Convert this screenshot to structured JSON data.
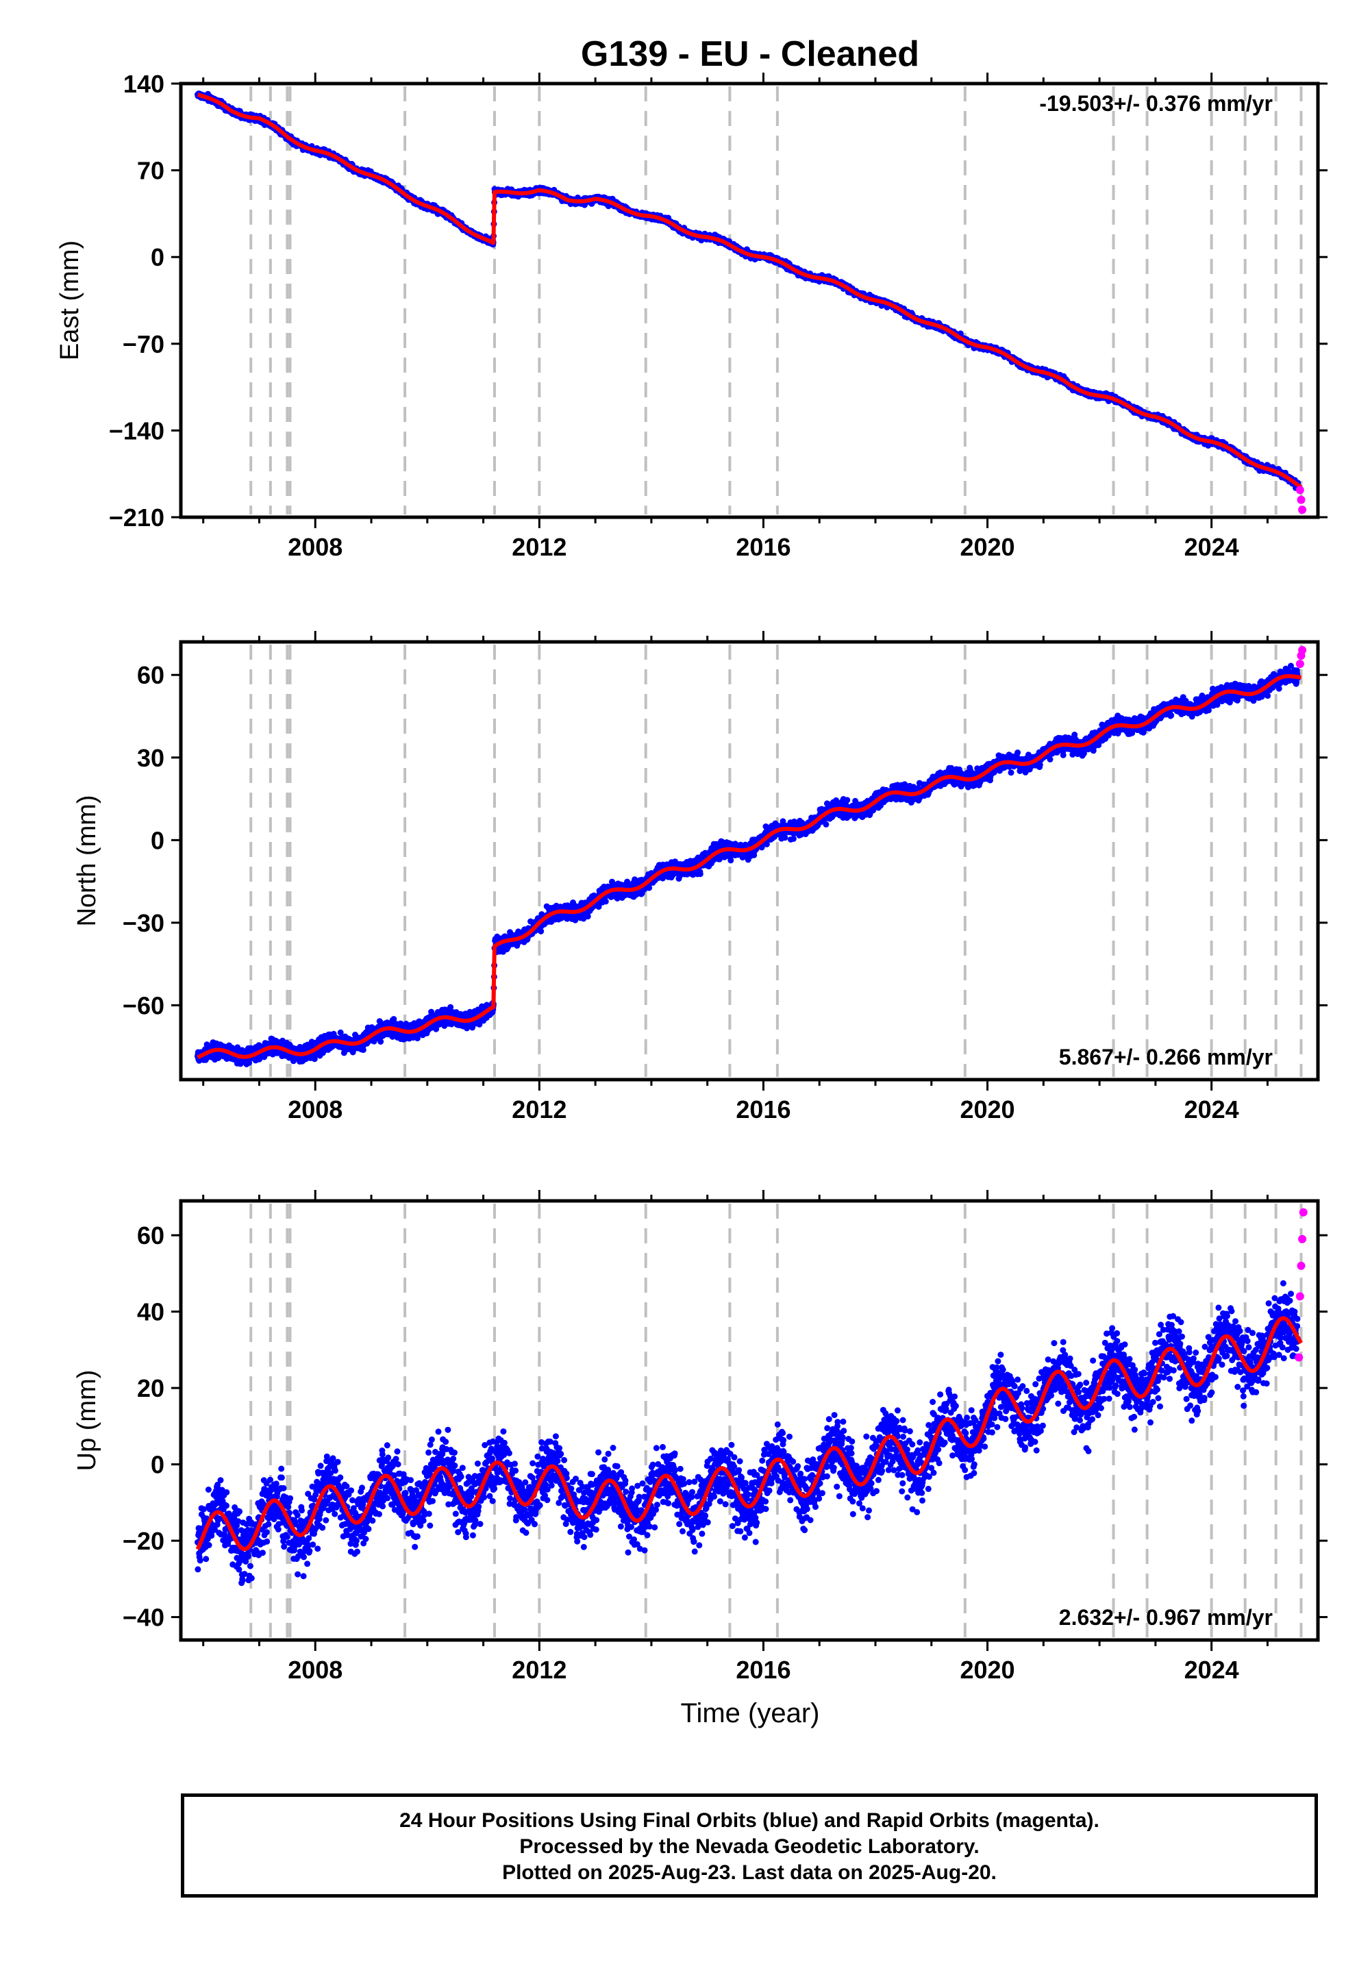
{
  "title": "G139  - EU - Cleaned",
  "xlabel": "Time (year)",
  "footer": {
    "line1": "24 Hour Positions Using Final Orbits (blue) and Rapid Orbits (magenta).",
    "line2": "Processed by the Nevada Geodetic Laboratory.",
    "line3": "Plotted on 2025-Aug-23. Last data on 2025-Aug-20."
  },
  "colors": {
    "final": "#0000ff",
    "rapid": "#ff00ff",
    "model": "#ff0000",
    "steps": "#c0c0c0"
  },
  "chart_data": [
    {
      "type": "scatter",
      "title": "G139  - EU - Cleaned",
      "ylabel": "East (mm)",
      "xlim": [
        2005.6,
        2025.9
      ],
      "ylim": [
        -210,
        140
      ],
      "xticks": [
        2008,
        2012,
        2016,
        2020,
        2024
      ],
      "yticks": [
        -210,
        -140,
        -70,
        0,
        70,
        140
      ],
      "ytick_labels": [
        "−210",
        "−140",
        "−70",
        "0",
        "70",
        "140"
      ],
      "rate_text": "-19.503+/- 0.376 mm/yr",
      "rate_position": "top-right",
      "step_epochs": [
        2006.85,
        2007.2,
        2007.5,
        2007.55,
        2009.6,
        2011.2,
        2012.0,
        2013.9,
        2015.4,
        2016.25,
        2019.6,
        2022.25,
        2022.85,
        2024.0,
        2024.6,
        2025.15,
        2025.6
      ],
      "trend": {
        "x": [
          2005.9,
          2006.5,
          2007.0,
          2007.5,
          2008.0,
          2008.5,
          2009.0,
          2009.5,
          2010.0,
          2010.5,
          2011.18,
          2011.2,
          2012.0,
          2012.5,
          2013.0,
          2013.5,
          2014.0,
          2014.5,
          2015.0,
          2015.5,
          2016.0,
          2016.5,
          2017.0,
          2017.5,
          2018.0,
          2018.5,
          2019.0,
          2019.5,
          2020.0,
          2020.5,
          2021.0,
          2021.5,
          2022.0,
          2022.5,
          2023.0,
          2023.5,
          2024.0,
          2024.5,
          2025.0,
          2025.6
        ],
        "y": [
          132,
          118,
          112,
          97,
          86,
          77,
          66,
          54,
          41,
          29,
          10,
          51,
          54,
          46,
          47,
          39,
          33,
          23,
          16,
          7,
          0,
          -9,
          -17,
          -25,
          -35,
          -44,
          -54,
          -65,
          -73,
          -84,
          -93,
          -104,
          -112,
          -120,
          -129,
          -141,
          -149,
          -160,
          -171,
          -185
        ]
      },
      "rapid": {
        "x": [
          2025.58,
          2025.6,
          2025.62
        ],
        "y": [
          -188,
          -196,
          -204
        ]
      },
      "scatter_sigma": 2.2,
      "annual_amplitude": 1.5
    },
    {
      "type": "scatter",
      "ylabel": "North (mm)",
      "xlim": [
        2005.6,
        2025.9
      ],
      "ylim": [
        -87,
        72
      ],
      "xticks": [
        2008,
        2012,
        2016,
        2020,
        2024
      ],
      "yticks": [
        -60,
        -30,
        0,
        30,
        60
      ],
      "ytick_labels": [
        "−60",
        "−30",
        "0",
        "30",
        "60"
      ],
      "rate_text": "5.867+/- 0.266 mm/yr",
      "rate_position": "bottom-right",
      "step_epochs": [
        2006.85,
        2007.2,
        2007.5,
        2007.55,
        2009.6,
        2011.2,
        2012.0,
        2013.9,
        2015.4,
        2016.25,
        2019.6,
        2022.25,
        2022.85,
        2024.0,
        2024.6,
        2025.15,
        2025.6
      ],
      "trend": {
        "x": [
          2005.9,
          2007.0,
          2008.0,
          2009.0,
          2010.0,
          2011.0,
          2011.18,
          2011.2,
          2012.0,
          2013.0,
          2014.0,
          2015.0,
          2016.0,
          2017.0,
          2018.0,
          2019.0,
          2020.0,
          2021.0,
          2022.0,
          2023.0,
          2024.0,
          2025.0,
          2025.6
        ],
        "y": [
          -78,
          -77,
          -76,
          -71,
          -67,
          -63,
          -62,
          -40,
          -30,
          -22,
          -14,
          -7,
          0,
          8,
          14,
          20,
          25,
          31,
          38,
          45,
          51,
          56,
          60
        ]
      },
      "rapid": {
        "x": [
          2025.58,
          2025.6,
          2025.62
        ],
        "y": [
          64,
          67,
          69
        ]
      },
      "scatter_sigma": 2.6,
      "annual_amplitude": 1.5
    },
    {
      "type": "scatter",
      "ylabel": "Up (mm)",
      "xlim": [
        2005.6,
        2025.9
      ],
      "ylim": [
        -46,
        69
      ],
      "xticks": [
        2008,
        2012,
        2016,
        2020,
        2024
      ],
      "xtick_labels": [
        "2008",
        "2012",
        "2016",
        "2020",
        "2024"
      ],
      "yticks": [
        -40,
        -20,
        0,
        20,
        40,
        60
      ],
      "ytick_labels": [
        "−40",
        "−20",
        "0",
        "20",
        "40",
        "60"
      ],
      "rate_text": "2.632+/- 0.967 mm/yr",
      "rate_position": "bottom-right",
      "step_epochs": [
        2006.85,
        2007.2,
        2007.5,
        2007.55,
        2009.6,
        2011.2,
        2012.0,
        2013.9,
        2015.4,
        2016.25,
        2019.6,
        2022.25,
        2022.85,
        2024.0,
        2024.6,
        2025.15,
        2025.6
      ],
      "trend": {
        "x": [
          2005.9,
          2007.0,
          2008.0,
          2009.0,
          2010.0,
          2011.0,
          2012.0,
          2012.7,
          2013.0,
          2014.0,
          2015.0,
          2016.0,
          2017.0,
          2018.0,
          2019.0,
          2019.6,
          2020.0,
          2021.0,
          2022.0,
          2023.0,
          2024.0,
          2025.0,
          2025.6
        ],
        "y": [
          -19,
          -16,
          -12,
          -9,
          -7,
          -5,
          -5,
          -8,
          -10,
          -9,
          -7,
          -5,
          -2,
          1,
          4,
          9,
          13,
          18,
          21,
          24,
          27,
          31,
          35
        ]
      },
      "rapid": {
        "x": [
          2025.56,
          2025.58,
          2025.6,
          2025.62,
          2025.64
        ],
        "y": [
          28,
          44,
          52,
          59,
          66
        ]
      },
      "scatter_sigma": 7.5,
      "annual_amplitude": 5.5
    }
  ]
}
